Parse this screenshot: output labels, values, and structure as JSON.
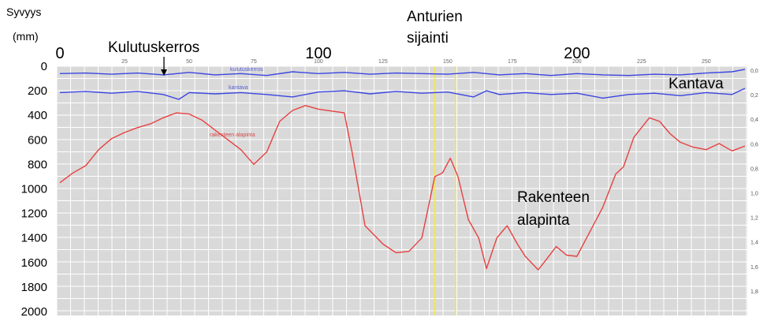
{
  "chart_data": {
    "type": "line",
    "ylabel_line1": "Syvyys",
    "ylabel_line2": "(mm)",
    "x_major_ticks": [
      0,
      100,
      200
    ],
    "x_minor_ticks": [
      25,
      50,
      75,
      100,
      125,
      150,
      175,
      200,
      225,
      250
    ],
    "xlim": [
      0,
      265
    ],
    "y_ticks": [
      0,
      200,
      400,
      600,
      800,
      1000,
      1200,
      1400,
      1600,
      1800,
      2000
    ],
    "ylim": [
      0,
      2000
    ],
    "right_ticks": [
      "0,0",
      "0,2",
      "0,4",
      "0,6",
      "0,8",
      "1,0",
      "1,2",
      "1,4",
      "1,6",
      "1,8"
    ],
    "grid": true,
    "markers": [
      145,
      153
    ],
    "annotations": {
      "kulutuskerros": "Kulutuskerros",
      "anturien_1": "Anturien",
      "anturien_2": "sijainti",
      "kantava": "Kantava",
      "rakenteen_1": "Rakenteen",
      "rakenteen_2": "alapinta"
    },
    "inline_labels": {
      "kulutus": "kulutuskerros",
      "kantava": "kantava",
      "alapinta": "rakenteen alapinta"
    },
    "series": [
      {
        "key": "kulutuskerros",
        "color": "#3b46e0",
        "points": [
          [
            0,
            60
          ],
          [
            10,
            55
          ],
          [
            20,
            65
          ],
          [
            30,
            55
          ],
          [
            40,
            70
          ],
          [
            50,
            50
          ],
          [
            60,
            70
          ],
          [
            70,
            60
          ],
          [
            80,
            75
          ],
          [
            90,
            45
          ],
          [
            100,
            60
          ],
          [
            110,
            50
          ],
          [
            120,
            65
          ],
          [
            130,
            55
          ],
          [
            140,
            60
          ],
          [
            150,
            65
          ],
          [
            160,
            50
          ],
          [
            170,
            70
          ],
          [
            180,
            60
          ],
          [
            190,
            75
          ],
          [
            200,
            60
          ],
          [
            210,
            70
          ],
          [
            220,
            75
          ],
          [
            230,
            65
          ],
          [
            240,
            70
          ],
          [
            250,
            55
          ],
          [
            260,
            45
          ],
          [
            265,
            25
          ]
        ]
      },
      {
        "key": "kantava",
        "color": "#3b46e0",
        "points": [
          [
            0,
            215
          ],
          [
            10,
            205
          ],
          [
            20,
            220
          ],
          [
            30,
            205
          ],
          [
            40,
            230
          ],
          [
            46,
            270
          ],
          [
            50,
            215
          ],
          [
            60,
            225
          ],
          [
            70,
            215
          ],
          [
            80,
            230
          ],
          [
            90,
            250
          ],
          [
            100,
            210
          ],
          [
            110,
            200
          ],
          [
            120,
            225
          ],
          [
            130,
            205
          ],
          [
            140,
            220
          ],
          [
            150,
            210
          ],
          [
            160,
            250
          ],
          [
            165,
            200
          ],
          [
            170,
            230
          ],
          [
            180,
            215
          ],
          [
            190,
            230
          ],
          [
            200,
            220
          ],
          [
            210,
            260
          ],
          [
            220,
            230
          ],
          [
            230,
            220
          ],
          [
            240,
            240
          ],
          [
            250,
            215
          ],
          [
            260,
            230
          ],
          [
            265,
            180
          ]
        ]
      },
      {
        "key": "rakenteen alapinta",
        "color": "#e84040",
        "points": [
          [
            0,
            950
          ],
          [
            5,
            870
          ],
          [
            10,
            810
          ],
          [
            15,
            680
          ],
          [
            20,
            590
          ],
          [
            25,
            540
          ],
          [
            30,
            500
          ],
          [
            35,
            470
          ],
          [
            40,
            420
          ],
          [
            45,
            380
          ],
          [
            50,
            390
          ],
          [
            55,
            440
          ],
          [
            60,
            520
          ],
          [
            65,
            600
          ],
          [
            70,
            680
          ],
          [
            75,
            800
          ],
          [
            80,
            700
          ],
          [
            85,
            450
          ],
          [
            90,
            360
          ],
          [
            95,
            320
          ],
          [
            100,
            350
          ],
          [
            110,
            380
          ],
          [
            113,
            700
          ],
          [
            118,
            1300
          ],
          [
            125,
            1450
          ],
          [
            130,
            1520
          ],
          [
            135,
            1510
          ],
          [
            140,
            1400
          ],
          [
            145,
            900
          ],
          [
            148,
            870
          ],
          [
            151,
            750
          ],
          [
            154,
            900
          ],
          [
            158,
            1250
          ],
          [
            162,
            1400
          ],
          [
            165,
            1650
          ],
          [
            169,
            1400
          ],
          [
            173,
            1300
          ],
          [
            177,
            1450
          ],
          [
            180,
            1550
          ],
          [
            185,
            1660
          ],
          [
            188,
            1580
          ],
          [
            192,
            1470
          ],
          [
            196,
            1540
          ],
          [
            200,
            1550
          ],
          [
            205,
            1350
          ],
          [
            210,
            1150
          ],
          [
            215,
            880
          ],
          [
            218,
            820
          ],
          [
            222,
            580
          ],
          [
            228,
            420
          ],
          [
            232,
            450
          ],
          [
            236,
            550
          ],
          [
            240,
            620
          ],
          [
            245,
            660
          ],
          [
            250,
            680
          ],
          [
            255,
            630
          ],
          [
            260,
            690
          ],
          [
            265,
            650
          ]
        ]
      }
    ]
  }
}
